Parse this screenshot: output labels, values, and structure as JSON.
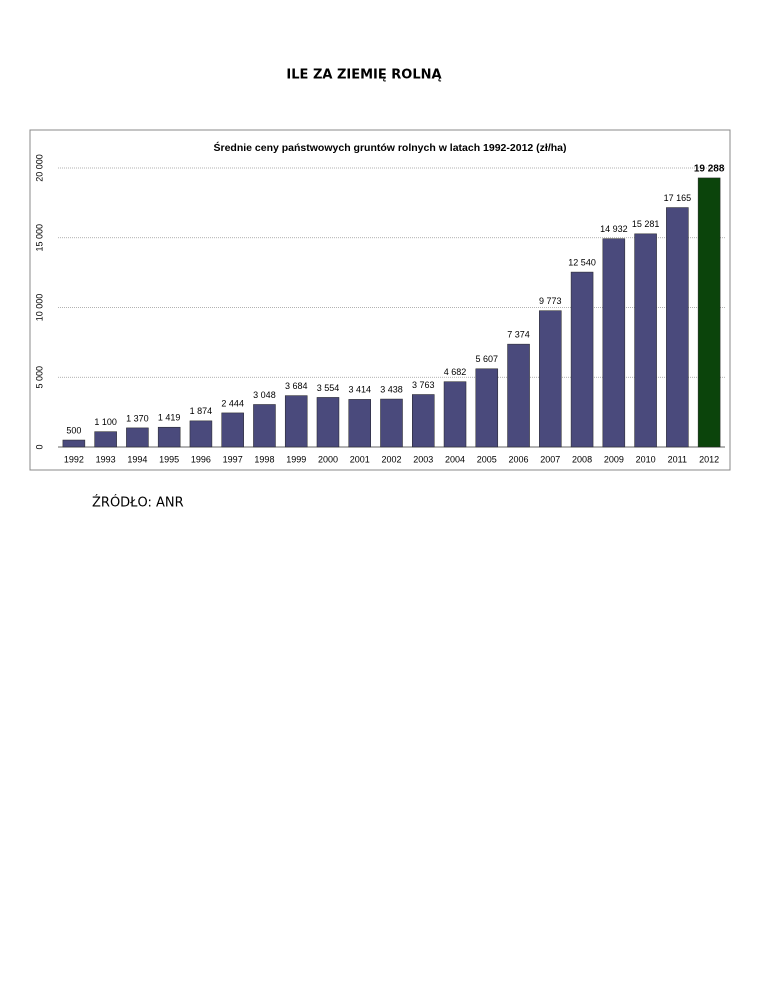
{
  "header": {
    "title": "ILE ZA ZIEMIĘ ROLNĄ"
  },
  "chart_data": {
    "type": "bar",
    "title": "Średnie ceny państwowych gruntów rolnych w latach 1992-2012 (zł/ha)",
    "categories": [
      "1992",
      "1993",
      "1994",
      "1995",
      "1996",
      "1997",
      "1998",
      "1999",
      "2000",
      "2001",
      "2002",
      "2003",
      "2004",
      "2005",
      "2006",
      "2007",
      "2008",
      "2009",
      "2010",
      "2011",
      "2012"
    ],
    "values": [
      500,
      1100,
      1370,
      1419,
      1874,
      2444,
      3048,
      3684,
      3554,
      3414,
      3438,
      3763,
      4682,
      5607,
      7374,
      9773,
      12540,
      14932,
      15281,
      17165,
      19288
    ],
    "value_labels": [
      "500",
      "1 100",
      "1 370",
      "1 419",
      "1 874",
      "2 444",
      "3 048",
      "3 684",
      "3 554",
      "3 414",
      "3 438",
      "3 763",
      "4 682",
      "5 607",
      "7 374",
      "9 773",
      "12 540",
      "14 932",
      "15 281",
      "17 165",
      "19 288"
    ],
    "colors": [
      "#4a4a7c",
      "#4a4a7c",
      "#4a4a7c",
      "#4a4a7c",
      "#4a4a7c",
      "#4a4a7c",
      "#4a4a7c",
      "#4a4a7c",
      "#4a4a7c",
      "#4a4a7c",
      "#4a4a7c",
      "#4a4a7c",
      "#4a4a7c",
      "#4a4a7c",
      "#4a4a7c",
      "#4a4a7c",
      "#4a4a7c",
      "#4a4a7c",
      "#4a4a7c",
      "#4a4a7c",
      "#0b440b"
    ],
    "ylim": [
      0,
      20000
    ],
    "yticks": [
      0,
      {
        "value": 5000,
        "label": "5 000"
      },
      {
        "value": 10000,
        "label": "10 000"
      },
      {
        "value": 15000,
        "label": "15 000"
      },
      {
        "value": 20000,
        "label": "20 000"
      }
    ],
    "grid": true
  },
  "source": "ŹRÓDŁO: ANR"
}
